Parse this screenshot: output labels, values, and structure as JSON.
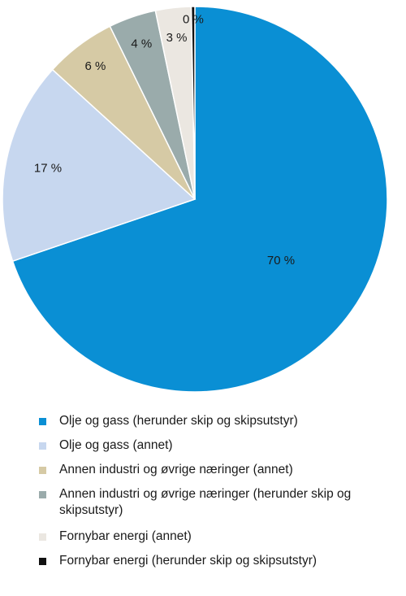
{
  "chart_data": {
    "type": "pie",
    "start_angle": "top",
    "direction": "clockwise",
    "slices": [
      {
        "label": "Olje og gass (herunder skip og skipsutstyr)",
        "value": 70,
        "value_label": "70 %",
        "color": "#0a8fd4"
      },
      {
        "label": "Olje og gass (annet)",
        "value": 17,
        "value_label": "17 %",
        "color": "#c7d7ef"
      },
      {
        "label": "Annen industri og øvrige næringer (annet)",
        "value": 6,
        "value_label": "6 %",
        "color": "#d6caa5"
      },
      {
        "label": "Annen industri og øvrige næringer (herunder skip og skipsutstyr)",
        "value": 4,
        "value_label": "4 %",
        "color": "#9aabab"
      },
      {
        "label": "Fornybar energi (annet)",
        "value": 3,
        "value_label": "3 %",
        "color": "#ebe7e1"
      },
      {
        "label": "Fornybar energi (herunder skip og skipsutstyr)",
        "value": 0.3,
        "value_label": "0 %",
        "color": "#111111"
      }
    ],
    "legend_position": "bottom"
  }
}
